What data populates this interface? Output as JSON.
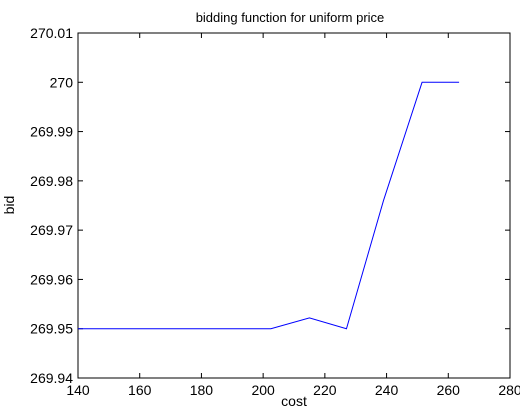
{
  "chart_data": {
    "type": "line",
    "title": "bidding function for  uniform price",
    "xlabel": "cost",
    "ylabel": "bid",
    "xlim": [
      140,
      280
    ],
    "ylim": [
      269.94,
      270.01
    ],
    "x_ticks": [
      "140",
      "160",
      "180",
      "200",
      "220",
      "240",
      "260",
      "280"
    ],
    "y_ticks": [
      "269.94",
      "269.95",
      "269.96",
      "269.97",
      "269.98",
      "269.99",
      "270",
      "270.01"
    ],
    "grid": false,
    "series": [
      {
        "color": "#0000ff",
        "x": [
          140,
          202.5,
          215,
          227,
          239,
          251.5,
          263.5
        ],
        "y": [
          269.95,
          269.95,
          269.9522,
          269.95,
          269.976,
          270.0,
          270.0
        ]
      }
    ]
  }
}
